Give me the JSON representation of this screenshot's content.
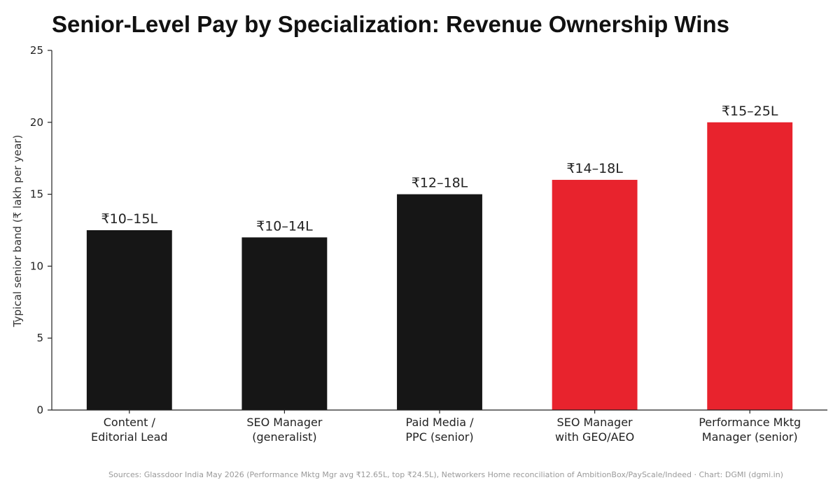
{
  "chart_data": {
    "type": "bar",
    "title": "Senior-Level Pay by Specialization: Revenue Ownership Wins",
    "ylabel": "Typical senior band (₹ lakh per year)",
    "xlabel": "",
    "ylim": [
      0,
      25
    ],
    "yticks": [
      0,
      5,
      10,
      15,
      20,
      25
    ],
    "grid": false,
    "categories": [
      [
        "Content /",
        "Editorial Lead"
      ],
      [
        "SEO Manager",
        "(generalist)"
      ],
      [
        "Paid Media /",
        "PPC (senior)"
      ],
      [
        "SEO Manager",
        "with GEO/AEO"
      ],
      [
        "Performance Mktg",
        "Manager (senior)"
      ]
    ],
    "values": [
      12.5,
      12,
      15,
      16,
      20
    ],
    "data_labels": [
      "₹10–15L",
      "₹10–14L",
      "₹12–18L",
      "₹14–18L",
      "₹15–25L"
    ],
    "colors": [
      "#161616",
      "#161616",
      "#161616",
      "#e8232d",
      "#e8232d"
    ]
  },
  "footer": {
    "source": "Sources: Glassdoor India May 2026 (Performance Mktg Mgr avg ₹12.65L, top ₹24.5L), Networkers Home reconciliation of AmbitionBox/PayScale/Indeed · Chart: DGMI (dgmi.in)"
  }
}
